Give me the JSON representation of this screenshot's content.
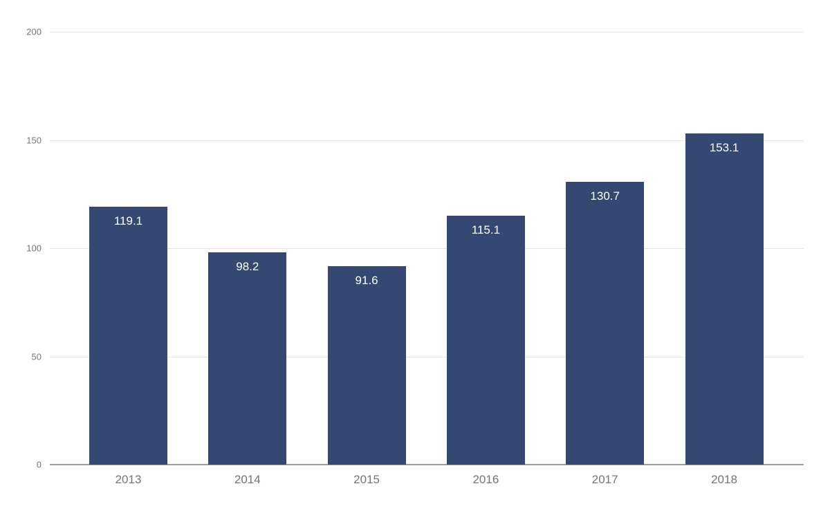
{
  "chart_data": {
    "type": "bar",
    "categories": [
      "2013",
      "2014",
      "2015",
      "2016",
      "2017",
      "2018"
    ],
    "values": [
      119.1,
      98.2,
      91.6,
      115.1,
      130.7,
      153.1
    ],
    "value_labels": [
      "119.1",
      "98.2",
      "91.6",
      "115.1",
      "130.7",
      "153.1"
    ],
    "title": "",
    "xlabel": "",
    "ylabel": "",
    "ylim": [
      0,
      200
    ],
    "yticks": [
      0,
      50,
      100,
      150,
      200
    ],
    "grid": true,
    "legend_position": "none",
    "colors": {
      "bar": "#344872",
      "bar_label_text": "#ffffff",
      "axis_text": "#757575",
      "gridline": "#e6e6e6",
      "axis_line": "#9e9e9e",
      "background": "#ffffff"
    }
  }
}
